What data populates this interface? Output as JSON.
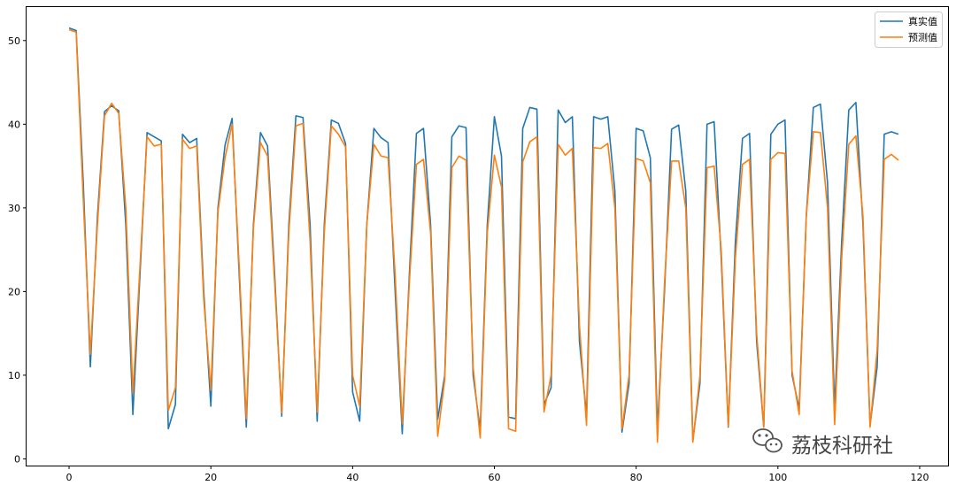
{
  "chart_data": {
    "type": "line",
    "title": "",
    "xlabel": "",
    "ylabel": "",
    "xlim": [
      -6,
      124
    ],
    "ylim": [
      -0.8,
      54
    ],
    "xticks": [
      0,
      20,
      40,
      60,
      80,
      100,
      120
    ],
    "xtick_labels": [
      "0",
      "20",
      "40",
      "60",
      "80",
      "100",
      "120"
    ],
    "yticks": [
      0,
      10,
      20,
      30,
      40,
      50
    ],
    "ytick_labels": [
      "0",
      "10",
      "20",
      "30",
      "40",
      "50"
    ],
    "grid": false,
    "legend": "top-right",
    "x": [
      0,
      1,
      2,
      3,
      4,
      5,
      6,
      7,
      8,
      9,
      10,
      11,
      12,
      13,
      14,
      15,
      16,
      17,
      18,
      19,
      20,
      21,
      22,
      23,
      24,
      25,
      26,
      27,
      28,
      29,
      30,
      31,
      32,
      33,
      34,
      35,
      36,
      37,
      38,
      39,
      40,
      41,
      42,
      43,
      44,
      45,
      46,
      47,
      48,
      49,
      50,
      51,
      52,
      53,
      54,
      55,
      56,
      57,
      58,
      59,
      60,
      61,
      62,
      63,
      64,
      65,
      66,
      67,
      68,
      69,
      70,
      71,
      72,
      73,
      74,
      75,
      76,
      77,
      78,
      79,
      80,
      81,
      82,
      83,
      84,
      85,
      86,
      87,
      88,
      89,
      90,
      91,
      92,
      93,
      94,
      95,
      96,
      97,
      98,
      99,
      100,
      101,
      102,
      103,
      104,
      105,
      106,
      107,
      108,
      109,
      110,
      111,
      112,
      113,
      114,
      115,
      116,
      117
    ],
    "series": [
      {
        "name": "真实值",
        "color": "#1f77b4",
        "values": [
          51.5,
          51.2,
          33.0,
          11.0,
          29.0,
          41.5,
          42.2,
          41.6,
          28.0,
          5.3,
          22.0,
          39.0,
          38.5,
          38.0,
          3.6,
          6.5,
          38.8,
          37.8,
          38.3,
          20.0,
          6.3,
          30.0,
          37.5,
          40.7,
          22.0,
          3.8,
          28.0,
          39.0,
          37.4,
          22.0,
          5.1,
          28.0,
          41.0,
          40.8,
          28.0,
          4.5,
          28.0,
          40.5,
          40.1,
          37.7,
          8.0,
          4.5,
          28.0,
          39.5,
          38.4,
          37.8,
          20.0,
          3.0,
          22.0,
          38.9,
          39.5,
          28.0,
          4.7,
          10.0,
          38.5,
          39.8,
          39.6,
          10.0,
          3.5,
          28.0,
          40.9,
          36.2,
          5.0,
          4.8,
          39.5,
          42.0,
          41.8,
          6.5,
          8.5,
          41.7,
          40.2,
          40.9,
          14.0,
          5.2,
          40.9,
          40.6,
          40.9,
          32.0,
          3.2,
          9.0,
          39.5,
          39.2,
          36.0,
          3.5,
          20.0,
          39.4,
          39.9,
          32.0,
          2.2,
          9.0,
          40.0,
          40.3,
          24.0,
          3.8,
          26.0,
          38.3,
          38.9,
          14.0,
          3.8,
          38.8,
          40.0,
          40.5,
          10.0,
          6.0,
          29.0,
          42.0,
          42.4,
          33.0,
          6.0,
          26.0,
          41.7,
          42.6,
          28.0,
          4.0,
          11.0,
          38.8,
          39.1,
          38.8
        ]
      },
      {
        "name": "预测值",
        "color": "#ff7f0e",
        "values": [
          51.3,
          51.0,
          31.0,
          12.5,
          28.0,
          41.0,
          42.5,
          41.3,
          30.0,
          7.8,
          23.0,
          38.5,
          37.4,
          37.6,
          5.8,
          8.5,
          38.2,
          37.1,
          37.4,
          19.0,
          8.2,
          29.5,
          36.0,
          40.0,
          23.0,
          4.8,
          27.5,
          37.8,
          36.2,
          21.0,
          5.5,
          27.0,
          39.8,
          40.1,
          26.0,
          5.6,
          27.0,
          39.8,
          38.8,
          37.3,
          10.0,
          6.3,
          28.0,
          37.6,
          36.2,
          36.0,
          22.0,
          4.2,
          21.0,
          35.2,
          35.8,
          27.0,
          2.7,
          9.5,
          34.8,
          36.2,
          35.7,
          11.0,
          2.5,
          27.0,
          36.3,
          32.5,
          3.6,
          3.3,
          35.5,
          37.9,
          38.5,
          5.6,
          10.0,
          37.6,
          36.3,
          37.1,
          16.0,
          4.0,
          37.2,
          37.1,
          37.7,
          30.0,
          3.6,
          10.0,
          35.9,
          35.6,
          33.0,
          2.0,
          21.0,
          35.6,
          35.6,
          30.0,
          2.0,
          10.0,
          34.8,
          35.0,
          25.0,
          3.9,
          24.0,
          35.2,
          35.8,
          15.0,
          3.8,
          35.8,
          36.6,
          36.5,
          10.5,
          5.3,
          29.0,
          39.1,
          39.0,
          30.0,
          4.1,
          24.0,
          37.6,
          38.6,
          29.0,
          3.8,
          13.0,
          35.8,
          36.4,
          35.7
        ]
      }
    ]
  },
  "watermark": {
    "text": "荔枝科研社",
    "icon": "wechat-icon"
  }
}
